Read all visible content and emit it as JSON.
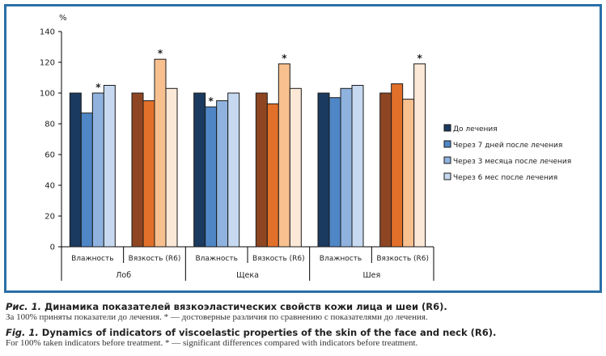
{
  "chart_data": {
    "type": "bar",
    "ylabel": "%",
    "ylim": [
      0,
      140
    ],
    "yticks": [
      0,
      20,
      40,
      60,
      80,
      100,
      120,
      140
    ],
    "grid": false,
    "legend_position": "right",
    "groups": [
      {
        "region": "Лоб",
        "subgroups": [
          {
            "label": "Влажность",
            "palette": "blue",
            "values": [
              100,
              87,
              100,
              105
            ],
            "significant": [
              false,
              false,
              true,
              false
            ]
          },
          {
            "label": "Вязкость (R6)",
            "palette": "orange",
            "values": [
              100,
              95,
              122,
              103
            ],
            "significant": [
              false,
              false,
              true,
              false
            ]
          }
        ]
      },
      {
        "region": "Щека",
        "subgroups": [
          {
            "label": "Влажность",
            "palette": "blue",
            "values": [
              100,
              91,
              95,
              100
            ],
            "significant": [
              false,
              true,
              false,
              false
            ]
          },
          {
            "label": "Вязкость (R6)",
            "palette": "orange",
            "values": [
              100,
              93,
              119,
              103
            ],
            "significant": [
              false,
              false,
              true,
              false
            ]
          }
        ]
      },
      {
        "region": "Шея",
        "subgroups": [
          {
            "label": "Влажность",
            "palette": "blue",
            "values": [
              100,
              97,
              103,
              105
            ],
            "significant": [
              false,
              false,
              false,
              false
            ]
          },
          {
            "label": "Вязкость (R6)",
            "palette": "orange",
            "values": [
              100,
              106,
              96,
              119
            ],
            "significant": [
              false,
              false,
              false,
              true
            ]
          }
        ]
      }
    ],
    "series": [
      {
        "name": "До лечения"
      },
      {
        "name": "Через 7 дней после лечения"
      },
      {
        "name": "Через 3 месяца после лечения"
      },
      {
        "name": "Через 6 мес после лечения"
      }
    ],
    "significance_marker": "*",
    "colors": {
      "blue": [
        "#1b3a5f",
        "#4f86c6",
        "#8fb3de",
        "#c6d9f0"
      ],
      "orange": [
        "#8e4622",
        "#e2702a",
        "#f8c08f",
        "#fce8d6"
      ]
    }
  },
  "caption": {
    "ru_prefix": "Рис. 1.",
    "ru_title": " Динамика показателей вязкоэластических свойств кожи лица и шеи (R6).",
    "ru_note": "За 100% приняты показатели до лечения. * — достоверные различия по сравнению с показателями до лечения.",
    "en_prefix": "Fig. 1.",
    "en_title": " Dynamics of indicators of viscoelastic properties of the skin of the face and neck (R6).",
    "en_note": "For 100% taken indicators before treatment. * — significant differences compared with indicators before treatment."
  }
}
